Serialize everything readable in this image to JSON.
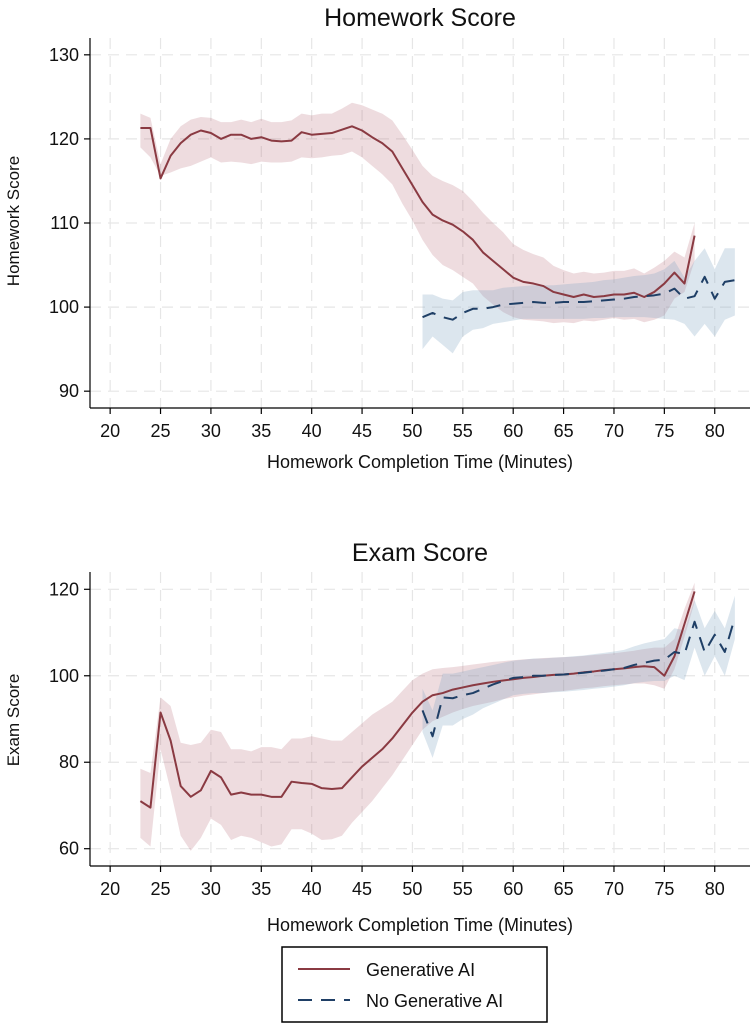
{
  "chart_data": [
    {
      "type": "line",
      "title": "Homework Score",
      "xlabel": "Homework Completion Time (Minutes)",
      "ylabel": "Homework Score",
      "xlim": [
        18,
        83.5
      ],
      "ylim": [
        88,
        132
      ],
      "xticks": [
        20,
        25,
        30,
        35,
        40,
        45,
        50,
        55,
        60,
        65,
        70,
        75,
        80
      ],
      "yticks": [
        90,
        100,
        110,
        120,
        130
      ],
      "grid": true,
      "series": [
        {
          "name": "Generative AI",
          "style": "solid",
          "color": "#8a3a42",
          "band_color": "rgba(176,96,108,0.22)",
          "x": [
            23,
            24,
            25,
            26,
            27,
            28,
            29,
            30,
            31,
            32,
            33,
            34,
            35,
            36,
            37,
            38,
            39,
            40,
            41,
            42,
            43,
            44,
            45,
            46,
            47,
            48,
            49,
            50,
            51,
            52,
            53,
            54,
            55,
            56,
            57,
            58,
            59,
            60,
            61,
            62,
            63,
            64,
            65,
            66,
            67,
            68,
            69,
            70,
            71,
            72,
            73,
            74,
            75,
            76,
            77,
            78
          ],
          "y": [
            121.3,
            121.3,
            115.3,
            118.0,
            119.5,
            120.5,
            121.0,
            120.7,
            120.0,
            120.5,
            120.5,
            120.0,
            120.2,
            119.8,
            119.7,
            119.8,
            120.8,
            120.5,
            120.6,
            120.7,
            121.1,
            121.5,
            121.0,
            120.2,
            119.5,
            118.5,
            116.5,
            114.5,
            112.5,
            111.0,
            110.3,
            109.8,
            109.0,
            108.0,
            106.5,
            105.5,
            104.5,
            103.5,
            103.0,
            102.8,
            102.5,
            101.8,
            101.5,
            101.2,
            101.5,
            101.2,
            101.3,
            101.5,
            101.5,
            101.7,
            101.2,
            101.8,
            102.8,
            104.1,
            102.8,
            108.5
          ],
          "lo": [
            119.0,
            117.8,
            115.6,
            116.0,
            116.5,
            116.8,
            117.3,
            117.8,
            117.2,
            117.3,
            117.2,
            117.0,
            117.3,
            117.2,
            117.2,
            117.3,
            117.8,
            117.7,
            117.8,
            118.0,
            118.1,
            118.5,
            117.8,
            116.8,
            115.8,
            114.6,
            112.3,
            110.3,
            108.0,
            106.2,
            105.0,
            104.4,
            103.6,
            102.8,
            101.3,
            100.3,
            99.4,
            98.8,
            98.5,
            98.4,
            98.3,
            98.1,
            98.2,
            98.1,
            98.4,
            98.3,
            98.5,
            98.7,
            98.5,
            98.6,
            98.2,
            98.5,
            99.0,
            101.0,
            101.8,
            105.5
          ],
          "hi": [
            123.0,
            122.5,
            117.0,
            120.0,
            121.5,
            122.3,
            122.6,
            122.5,
            122.0,
            122.0,
            122.3,
            122.0,
            122.4,
            122.0,
            122.0,
            122.2,
            123.0,
            122.8,
            123.0,
            123.0,
            123.6,
            124.3,
            124.0,
            123.5,
            123.0,
            122.2,
            120.5,
            118.7,
            116.8,
            115.6,
            115.0,
            114.5,
            113.8,
            112.6,
            111.2,
            110.0,
            108.9,
            107.5,
            106.8,
            106.3,
            105.9,
            104.9,
            104.4,
            104.0,
            104.2,
            104.0,
            104.1,
            104.3,
            104.3,
            104.6,
            104.0,
            104.7,
            105.5,
            106.6,
            105.9,
            110.0
          ]
        },
        {
          "name": "No Generative AI",
          "style": "dashed",
          "color": "#1f3f66",
          "band_color": "rgba(130,165,195,0.28)",
          "x": [
            51,
            52,
            53,
            54,
            55,
            56,
            57,
            58,
            59,
            60,
            61,
            62,
            63,
            64,
            65,
            66,
            67,
            68,
            69,
            70,
            71,
            72,
            73,
            74,
            75,
            76,
            77,
            78,
            79,
            80,
            81,
            82
          ],
          "y": [
            98.8,
            99.3,
            98.8,
            98.5,
            99.3,
            99.8,
            99.8,
            100.0,
            100.3,
            100.4,
            100.5,
            100.6,
            100.5,
            100.5,
            100.6,
            100.6,
            100.6,
            100.7,
            100.8,
            100.9,
            101.0,
            101.2,
            101.3,
            101.4,
            101.6,
            102.2,
            101.0,
            101.3,
            103.6,
            101.0,
            103.0,
            103.2
          ],
          "lo": [
            95.0,
            96.5,
            95.5,
            94.5,
            96.5,
            97.3,
            97.5,
            98.0,
            98.2,
            98.4,
            98.6,
            98.6,
            98.6,
            98.6,
            98.6,
            98.6,
            98.6,
            98.7,
            98.7,
            98.8,
            98.8,
            98.8,
            98.8,
            98.7,
            98.6,
            98.5,
            98.0,
            96.5,
            98.0,
            96.5,
            98.5,
            99.0
          ],
          "hi": [
            101.5,
            101.5,
            101.0,
            100.8,
            101.8,
            102.0,
            102.0,
            102.0,
            102.3,
            102.4,
            102.5,
            102.6,
            102.6,
            102.6,
            102.7,
            102.8,
            102.9,
            103.0,
            103.2,
            103.3,
            103.5,
            103.7,
            103.8,
            104.0,
            104.5,
            105.5,
            103.5,
            105.5,
            107.0,
            104.5,
            107.0,
            107.0
          ]
        }
      ]
    },
    {
      "type": "line",
      "title": "Exam Score",
      "xlabel": "Homework Completion Time (Minutes)",
      "ylabel": "Exam Score",
      "xlim": [
        18,
        83.5
      ],
      "ylim": [
        56,
        124
      ],
      "xticks": [
        20,
        25,
        30,
        35,
        40,
        45,
        50,
        55,
        60,
        65,
        70,
        75,
        80
      ],
      "yticks": [
        60,
        80,
        100,
        120
      ],
      "grid": true,
      "series": [
        {
          "name": "Generative AI",
          "style": "solid",
          "color": "#8a3a42",
          "band_color": "rgba(176,96,108,0.22)",
          "x": [
            23,
            24,
            25,
            26,
            27,
            28,
            29,
            30,
            31,
            32,
            33,
            34,
            35,
            36,
            37,
            38,
            39,
            40,
            41,
            42,
            43,
            44,
            45,
            46,
            47,
            48,
            49,
            50,
            51,
            52,
            53,
            54,
            55,
            56,
            57,
            58,
            59,
            60,
            61,
            62,
            63,
            64,
            65,
            66,
            67,
            68,
            69,
            70,
            71,
            72,
            73,
            74,
            75,
            76,
            77,
            78
          ],
          "y": [
            71.0,
            69.5,
            91.5,
            85.0,
            74.5,
            72.0,
            73.5,
            78.0,
            76.5,
            72.5,
            73.0,
            72.5,
            72.5,
            72.0,
            72.0,
            75.5,
            75.2,
            75.0,
            74.0,
            73.8,
            74.0,
            76.5,
            79.0,
            81.0,
            83.0,
            85.5,
            88.5,
            91.5,
            94.0,
            95.5,
            96.0,
            96.8,
            97.3,
            97.8,
            98.2,
            98.6,
            98.9,
            99.2,
            99.5,
            99.7,
            100.0,
            100.2,
            100.3,
            100.5,
            100.8,
            101.0,
            101.3,
            101.5,
            101.7,
            102.0,
            102.2,
            102.0,
            100.0,
            104.5,
            112.0,
            119.5
          ],
          "lo": [
            62.5,
            60.5,
            83.0,
            73.5,
            63.0,
            59.5,
            62.5,
            67.0,
            65.5,
            62.0,
            63.0,
            62.5,
            61.5,
            60.5,
            61.0,
            64.5,
            64.5,
            63.5,
            62.0,
            62.2,
            63.0,
            66.0,
            68.5,
            71.0,
            74.0,
            77.0,
            80.5,
            84.0,
            87.5,
            89.5,
            90.5,
            91.5,
            92.3,
            93.0,
            93.5,
            94.0,
            94.6,
            95.0,
            95.4,
            95.7,
            96.0,
            96.3,
            96.5,
            96.8,
            97.1,
            97.3,
            97.6,
            97.8,
            98.0,
            98.2,
            98.2,
            97.8,
            97.0,
            101.5,
            109.0,
            117.0
          ],
          "hi": [
            78.5,
            77.5,
            95.0,
            93.0,
            84.5,
            84.0,
            84.5,
            87.5,
            87.0,
            83.0,
            83.0,
            82.5,
            83.5,
            83.5,
            83.0,
            85.5,
            85.5,
            86.0,
            85.5,
            85.0,
            85.0,
            87.0,
            89.0,
            91.0,
            92.5,
            94.0,
            96.5,
            99.0,
            100.5,
            101.5,
            101.8,
            102.0,
            102.3,
            102.6,
            102.9,
            103.2,
            103.4,
            103.6,
            103.8,
            103.9,
            104.1,
            104.2,
            104.3,
            104.4,
            104.6,
            104.8,
            105.0,
            105.2,
            105.5,
            105.8,
            106.2,
            106.5,
            106.5,
            108.5,
            115.5,
            121.5
          ]
        },
        {
          "name": "No Generative AI",
          "style": "dashed",
          "color": "#1f3f66",
          "band_color": "rgba(130,165,195,0.28)",
          "x": [
            51,
            52,
            53,
            54,
            55,
            56,
            57,
            58,
            59,
            60,
            61,
            62,
            63,
            64,
            65,
            66,
            67,
            68,
            69,
            70,
            71,
            72,
            73,
            74,
            75,
            76,
            77,
            78,
            79,
            80,
            81,
            82
          ],
          "y": [
            92.0,
            86.0,
            95.0,
            94.8,
            95.5,
            96.0,
            97.0,
            98.0,
            98.8,
            99.5,
            99.7,
            100.0,
            100.0,
            100.2,
            100.3,
            100.5,
            100.7,
            101.0,
            101.2,
            101.5,
            101.8,
            102.5,
            103.0,
            103.5,
            103.7,
            105.5,
            105.0,
            112.5,
            105.5,
            109.5,
            105.5,
            113.5
          ],
          "lo": [
            87.0,
            81.0,
            88.5,
            88.5,
            90.0,
            91.0,
            92.5,
            93.5,
            94.5,
            95.5,
            95.8,
            96.0,
            96.0,
            96.2,
            96.3,
            96.5,
            96.7,
            97.0,
            97.2,
            97.5,
            97.8,
            98.3,
            98.6,
            98.8,
            98.8,
            100.0,
            99.0,
            106.5,
            100.0,
            104.5,
            100.0,
            108.5
          ],
          "hi": [
            97.0,
            92.0,
            100.5,
            100.5,
            101.0,
            101.5,
            102.0,
            102.5,
            103.0,
            103.5,
            103.7,
            104.0,
            104.0,
            104.2,
            104.3,
            104.5,
            104.7,
            105.0,
            105.3,
            105.6,
            106.0,
            106.8,
            107.5,
            108.0,
            108.5,
            111.0,
            110.5,
            117.5,
            111.0,
            115.0,
            111.0,
            118.5
          ]
        }
      ]
    }
  ],
  "legend": {
    "items": [
      {
        "label": "Generative AI",
        "style": "solid",
        "color": "#8a3a42"
      },
      {
        "label": "No Generative AI",
        "style": "dashed",
        "color": "#1f3f66"
      }
    ]
  }
}
